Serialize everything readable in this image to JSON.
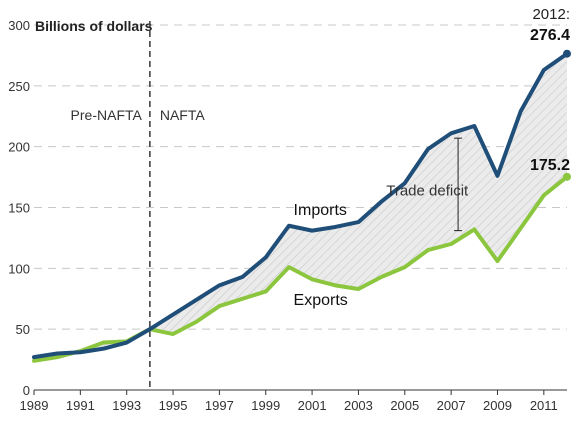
{
  "chart_data": {
    "type": "line",
    "ylabel": "Billions of dollars",
    "ylim": [
      0,
      300
    ],
    "yticks": [
      0,
      50,
      100,
      150,
      200,
      250,
      300
    ],
    "xlim": [
      1989,
      2012
    ],
    "xtick_labels": [
      "1989",
      "1991",
      "1993",
      "1995",
      "1997",
      "1999",
      "2001",
      "2003",
      "2005",
      "2007",
      "2009",
      "2011"
    ],
    "grid": true,
    "x": [
      1989,
      1990,
      1991,
      1992,
      1993,
      1994,
      1995,
      1996,
      1997,
      1998,
      1999,
      2000,
      2001,
      2002,
      2003,
      2004,
      2005,
      2006,
      2007,
      2008,
      2009,
      2010,
      2011,
      2012
    ],
    "series": [
      {
        "name": "Imports",
        "color": "#1f4e79",
        "values": [
          27,
          30,
          31,
          34,
          39,
          50,
          62,
          74,
          86,
          93,
          109,
          135,
          131,
          134,
          138,
          155,
          170,
          198,
          211,
          217,
          176,
          229,
          263,
          276.4
        ]
      },
      {
        "name": "Exports",
        "color": "#8cc63f",
        "values": [
          24,
          27,
          32,
          39,
          40,
          50,
          46,
          56,
          69,
          75,
          81,
          101,
          91,
          86,
          83,
          93,
          101,
          115,
          120,
          132,
          106,
          133,
          160,
          175.2
        ]
      }
    ],
    "annotations": {
      "divider_year": 1994,
      "pre_label": "Pre-NAFTA",
      "post_label": "NAFTA",
      "trade_deficit": "Trade deficit",
      "end_year_label": "2012:",
      "imports_end": "276.4",
      "exports_end": "175.2"
    }
  }
}
